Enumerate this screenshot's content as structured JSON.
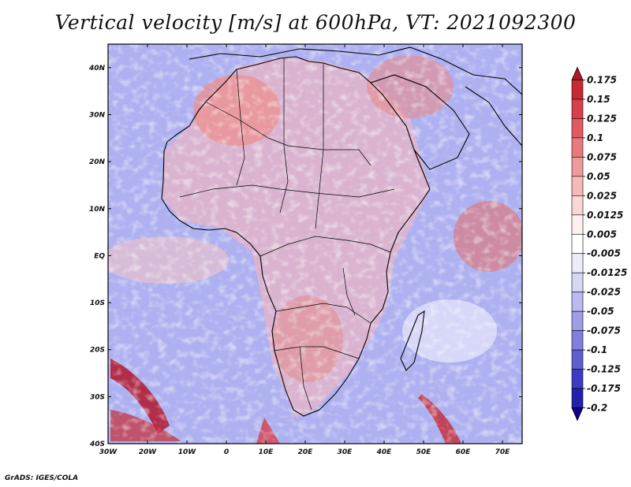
{
  "chart_data": {
    "type": "heatmap",
    "title": "Vertical velocity [m/s] at 600hPa, VT: 2021092300",
    "variable": "Vertical velocity",
    "units": "m/s",
    "level": "600hPa",
    "valid_time": "2021092300",
    "x_axis": {
      "range": [
        -30,
        75
      ],
      "tick_labels": [
        "30W",
        "20W",
        "10W",
        "0",
        "10E",
        "20E",
        "30E",
        "40E",
        "50E",
        "60E",
        "70E"
      ],
      "tick_values": [
        -30,
        -20,
        -10,
        0,
        10,
        20,
        30,
        40,
        50,
        60,
        70
      ]
    },
    "y_axis": {
      "range": [
        -40,
        45
      ],
      "tick_labels": [
        "40S",
        "30S",
        "20S",
        "10S",
        "EQ",
        "10N",
        "20N",
        "30N",
        "40N"
      ],
      "tick_values": [
        -40,
        -30,
        -20,
        -10,
        0,
        10,
        20,
        30,
        40
      ]
    },
    "colorbar": {
      "levels": [
        "0.175",
        "0.15",
        "0.125",
        "0.1",
        "0.075",
        "0.05",
        "0.025",
        "0.0125",
        "0.005",
        "-0.005",
        "-0.0125",
        "-0.025",
        "-0.05",
        "-0.075",
        "-0.1",
        "-0.125",
        "-0.175",
        "-0.2"
      ],
      "colors": [
        "#b2182b",
        "#c62b33",
        "#d6404a",
        "#e05a60",
        "#e87a7d",
        "#ef9a9a",
        "#f5b9b8",
        "#fad6d4",
        "#fdf0ef",
        "#ffffff",
        "#ececfb",
        "#d6d6f5",
        "#babaee",
        "#9e9ee6",
        "#8080dc",
        "#5f5fd0",
        "#3c3cc0",
        "#2222a8",
        "#100090"
      ]
    }
  },
  "credit": "GrADS: IGES/COLA"
}
